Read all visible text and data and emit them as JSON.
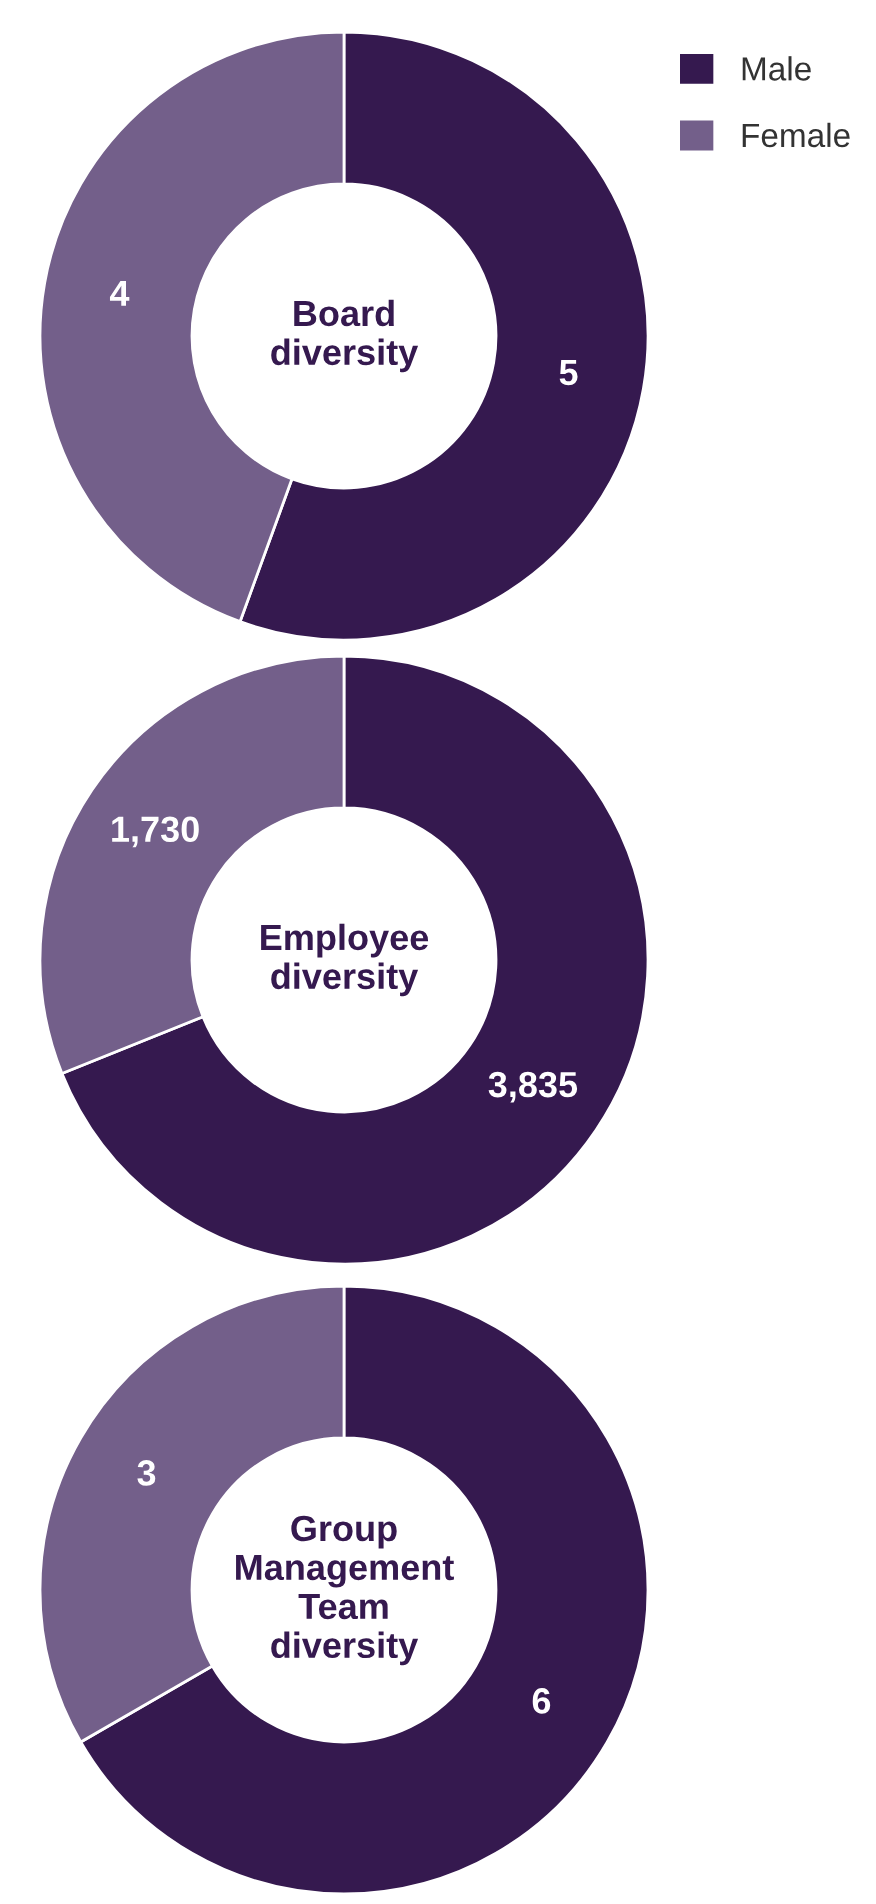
{
  "chart_data": [
    {
      "type": "donut",
      "title": "Board\ndiversity",
      "categories": [
        "Male",
        "Female"
      ],
      "values": [
        5,
        4
      ],
      "colors": [
        "#35194f",
        "#735f8a"
      ],
      "data_labels": true,
      "legend": "top right"
    },
    {
      "type": "donut",
      "title": "Employee\ndiversity",
      "categories": [
        null,
        null
      ],
      "values": [
        3835,
        1730
      ],
      "colors": [
        "#35194f",
        "#735f8a"
      ],
      "value_labels": [
        "3,835",
        "1,730"
      ]
    },
    {
      "type": "donut",
      "title": "Group\nManagement\nTeam\ndiversity",
      "categories": [
        null,
        null
      ],
      "values": [
        6,
        3
      ],
      "colors": [
        "#35194f",
        "#735f8a"
      ],
      "data_labels": true
    }
  ]
}
